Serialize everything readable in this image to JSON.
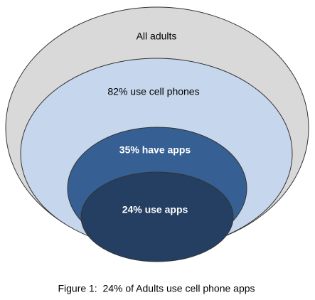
{
  "nodes": [
    {
      "label": "All adults"
    },
    {
      "label": "82% use cell phones"
    },
    {
      "label": "35% have apps"
    },
    {
      "label": "24% use apps"
    }
  ],
  "caption": "Figure 1:  24% of Adults use cell phone apps"
}
